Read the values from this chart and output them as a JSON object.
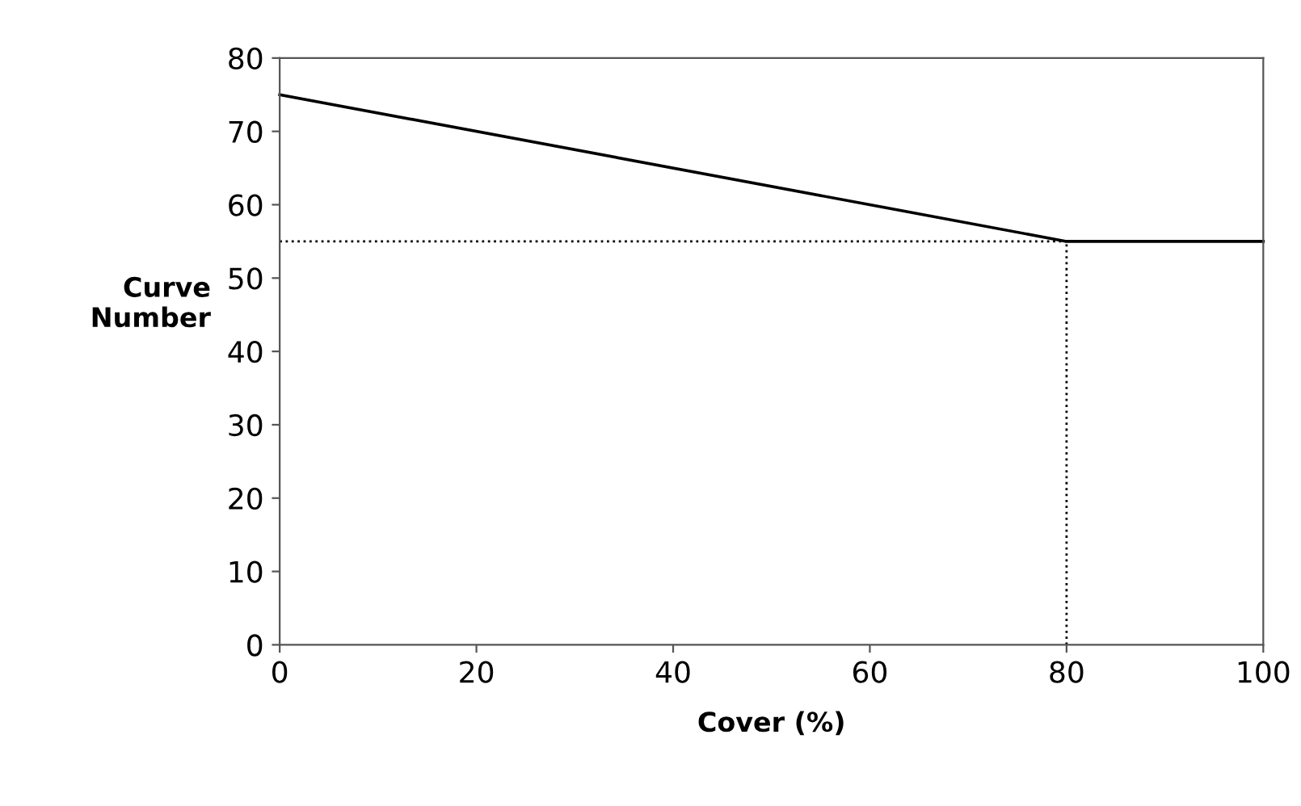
{
  "chart_data": {
    "type": "line",
    "xlabel": "Cover (%)",
    "ylabel": "Curve\nNumber",
    "series": [
      {
        "color": "#000000",
        "x": [
          0,
          80,
          100
        ],
        "values": [
          75,
          55,
          55
        ],
        "line_style": "solid"
      },
      {
        "color": "#000000",
        "x": [
          0,
          80
        ],
        "values": [
          55,
          55
        ],
        "line_style": "dotted"
      },
      {
        "color": "#000000",
        "x": [
          80,
          80
        ],
        "values": [
          0,
          55
        ],
        "line_style": "dotted"
      }
    ],
    "xlim": [
      0,
      100
    ],
    "xticks": [
      0,
      20,
      40,
      60,
      80,
      100
    ],
    "ylim": [
      0,
      80
    ],
    "yticks": [
      0,
      10,
      20,
      30,
      40,
      50,
      60,
      70,
      80
    ],
    "grid": false,
    "legend": false,
    "marker": "none"
  }
}
